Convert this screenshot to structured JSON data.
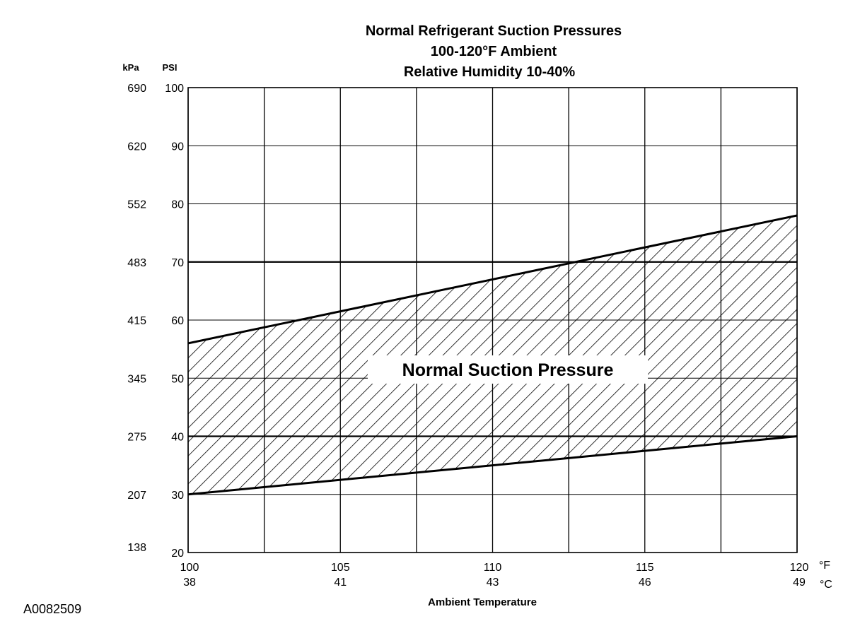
{
  "chart_data": {
    "type": "area",
    "title_lines": [
      "Normal  Refrigerant  Suction  Pressures",
      "100-120°F Ambient",
      "Relative Humidity 10-40%"
    ],
    "xlabel": "Ambient Temperature",
    "x_unit_primary": "°F",
    "x_unit_secondary": "°C",
    "xlim": [
      100,
      120
    ],
    "x_ticks": [
      {
        "f": 100,
        "f_label": "100",
        "c_label": "38"
      },
      {
        "f": 105,
        "f_label": "105",
        "c_label": "41"
      },
      {
        "f": 110,
        "f_label": "110",
        "c_label": "43"
      },
      {
        "f": 115,
        "f_label": "115",
        "c_label": "46"
      },
      {
        "f": 120,
        "f_label": "120",
        "c_label": "49"
      }
    ],
    "x_minor_gridlines": [
      102.5,
      107.5,
      112.5,
      117.5
    ],
    "y_unit_primary": "PSI",
    "y_unit_secondary": "kPa",
    "ylim": [
      20,
      100
    ],
    "y_ticks": [
      {
        "psi": 100,
        "psi_label": "100",
        "kpa_label": "690"
      },
      {
        "psi": 90,
        "psi_label": "90",
        "kpa_label": "620"
      },
      {
        "psi": 80,
        "psi_label": "80",
        "kpa_label": "552"
      },
      {
        "psi": 70,
        "psi_label": "70",
        "kpa_label": "483"
      },
      {
        "psi": 60,
        "psi_label": "60",
        "kpa_label": "415"
      },
      {
        "psi": 50,
        "psi_label": "50",
        "kpa_label": "345"
      },
      {
        "psi": 40,
        "psi_label": "40",
        "kpa_label": "275"
      },
      {
        "psi": 30,
        "psi_label": "30",
        "kpa_label": "207"
      },
      {
        "psi": 20,
        "psi_label": "20",
        "kpa_label": "138"
      }
    ],
    "bold_gridlines_psi": [
      70,
      40
    ],
    "band": {
      "label": "Normal Suction Pressure",
      "fill": "diagonal-hatch",
      "upper": {
        "x": [
          100,
          120
        ],
        "y": [
          56,
          78
        ]
      },
      "lower": {
        "x": [
          100,
          120
        ],
        "y": [
          30,
          40
        ]
      }
    },
    "grid": true,
    "figure_id": "A0082509"
  }
}
